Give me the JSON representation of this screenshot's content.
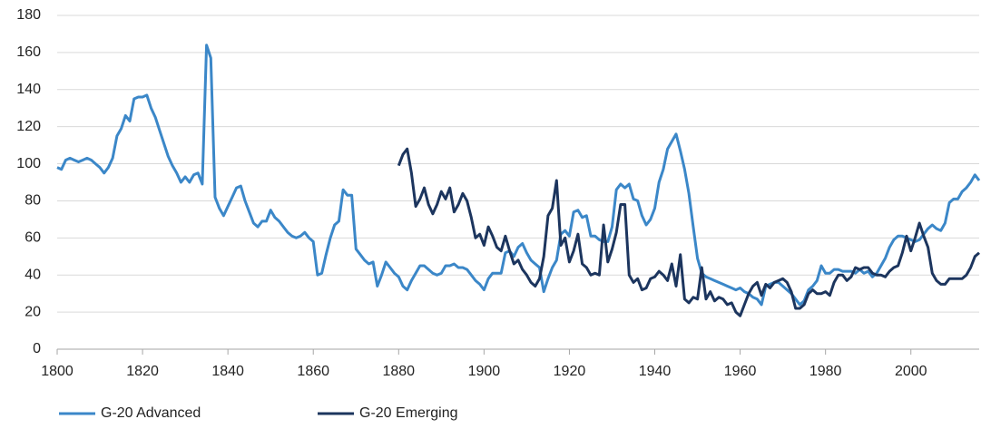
{
  "chart_data": {
    "type": "line",
    "x": [
      1800,
      1801,
      1802,
      1803,
      1804,
      1805,
      1806,
      1807,
      1808,
      1809,
      1810,
      1811,
      1812,
      1813,
      1814,
      1815,
      1816,
      1817,
      1818,
      1819,
      1820,
      1821,
      1822,
      1823,
      1824,
      1825,
      1826,
      1827,
      1828,
      1829,
      1830,
      1831,
      1832,
      1833,
      1834,
      1835,
      1836,
      1837,
      1838,
      1839,
      1840,
      1841,
      1842,
      1843,
      1844,
      1845,
      1846,
      1847,
      1848,
      1849,
      1850,
      1851,
      1852,
      1853,
      1854,
      1855,
      1856,
      1857,
      1858,
      1859,
      1860,
      1861,
      1862,
      1863,
      1864,
      1865,
      1866,
      1867,
      1868,
      1869,
      1870,
      1871,
      1872,
      1873,
      1874,
      1875,
      1876,
      1877,
      1878,
      1879,
      1880,
      1881,
      1882,
      1883,
      1884,
      1885,
      1886,
      1887,
      1888,
      1889,
      1890,
      1891,
      1892,
      1893,
      1894,
      1895,
      1896,
      1897,
      1898,
      1899,
      1900,
      1901,
      1902,
      1903,
      1904,
      1905,
      1906,
      1907,
      1908,
      1909,
      1910,
      1911,
      1912,
      1913,
      1914,
      1915,
      1916,
      1917,
      1918,
      1919,
      1920,
      1921,
      1922,
      1923,
      1924,
      1925,
      1926,
      1927,
      1928,
      1929,
      1930,
      1931,
      1932,
      1933,
      1934,
      1935,
      1936,
      1937,
      1938,
      1939,
      1940,
      1941,
      1942,
      1943,
      1944,
      1945,
      1946,
      1947,
      1948,
      1949,
      1950,
      1951,
      1952,
      1953,
      1954,
      1955,
      1956,
      1957,
      1958,
      1959,
      1960,
      1961,
      1962,
      1963,
      1964,
      1965,
      1966,
      1967,
      1968,
      1969,
      1970,
      1971,
      1972,
      1973,
      1974,
      1975,
      1976,
      1977,
      1978,
      1979,
      1980,
      1981,
      1982,
      1983,
      1984,
      1985,
      1986,
      1987,
      1988,
      1989,
      1990,
      1991,
      1992,
      1993,
      1994,
      1995,
      1996,
      1997,
      1998,
      1999,
      2000,
      2001,
      2002,
      2003,
      2004,
      2005,
      2006,
      2007,
      2008,
      2009,
      2010,
      2011,
      2012,
      2013,
      2014,
      2015,
      2016
    ],
    "series": [
      {
        "name": "G-20 Advanced",
        "color": "#3b87c8",
        "values": [
          98,
          97,
          102,
          103,
          102,
          101,
          102,
          103,
          102,
          100,
          98,
          95,
          98,
          103,
          115,
          119,
          126,
          123,
          135,
          136,
          136,
          137,
          130,
          125,
          118,
          111,
          104,
          99,
          95,
          90,
          93,
          90,
          94,
          95,
          89,
          164,
          157,
          82,
          76,
          72,
          77,
          82,
          87,
          88,
          80,
          74,
          68,
          66,
          69,
          69,
          75,
          71,
          69,
          66,
          63,
          61,
          60,
          61,
          63,
          60,
          58,
          40,
          41,
          51,
          60,
          67,
          69,
          86,
          83,
          83,
          54,
          51,
          48,
          46,
          47,
          34,
          40,
          47,
          44,
          41,
          39,
          34,
          32,
          37,
          41,
          45,
          45,
          43,
          41,
          40,
          41,
          45,
          45,
          46,
          44,
          44,
          43,
          40,
          37,
          35,
          32,
          38,
          41,
          41,
          41,
          52,
          53,
          50,
          55,
          57,
          52,
          48,
          46,
          44,
          31,
          38,
          44,
          48,
          62,
          64,
          61,
          74,
          75,
          71,
          72,
          61,
          61,
          59,
          58,
          58,
          66,
          86,
          89,
          87,
          89,
          81,
          80,
          72,
          67,
          70,
          76,
          90,
          97,
          108,
          112,
          116,
          107,
          97,
          84,
          66,
          49,
          41,
          39,
          38,
          37,
          36,
          35,
          34,
          33,
          32,
          33,
          31,
          30,
          28,
          27,
          24,
          34,
          35,
          36,
          36,
          34,
          32,
          30,
          27,
          24,
          26,
          32,
          34,
          37,
          45,
          41,
          41,
          43,
          43,
          42,
          42,
          42,
          41,
          43,
          41,
          42,
          39,
          41,
          45,
          49,
          55,
          59,
          61,
          61,
          60,
          59,
          58,
          59,
          62,
          65,
          67,
          65,
          64,
          68,
          79,
          81,
          81,
          85,
          87,
          90,
          94,
          91
        ]
      },
      {
        "name": "G-20 Emerging",
        "color": "#1c355e",
        "values": [
          null,
          null,
          null,
          null,
          null,
          null,
          null,
          null,
          null,
          null,
          null,
          null,
          null,
          null,
          null,
          null,
          null,
          null,
          null,
          null,
          null,
          null,
          null,
          null,
          null,
          null,
          null,
          null,
          null,
          null,
          null,
          null,
          null,
          null,
          null,
          null,
          null,
          null,
          null,
          null,
          null,
          null,
          null,
          null,
          null,
          null,
          null,
          null,
          null,
          null,
          null,
          null,
          null,
          null,
          null,
          null,
          null,
          null,
          null,
          null,
          null,
          null,
          null,
          null,
          null,
          null,
          null,
          null,
          null,
          null,
          null,
          null,
          null,
          null,
          null,
          null,
          null,
          null,
          null,
          null,
          99,
          105,
          108,
          95,
          77,
          81,
          87,
          78,
          73,
          78,
          85,
          81,
          87,
          74,
          78,
          84,
          80,
          71,
          60,
          62,
          56,
          66,
          61,
          55,
          53,
          61,
          53,
          46,
          48,
          43,
          40,
          36,
          34,
          38,
          50,
          72,
          76,
          91,
          56,
          60,
          47,
          53,
          62,
          46,
          44,
          40,
          41,
          40,
          67,
          47,
          54,
          63,
          78,
          78,
          40,
          36,
          38,
          32,
          33,
          38,
          39,
          42,
          40,
          37,
          46,
          34,
          51,
          27,
          25,
          28,
          27,
          44,
          27,
          31,
          26,
          28,
          27,
          24,
          25,
          20,
          18,
          24,
          30,
          34,
          36,
          29,
          35,
          33,
          36,
          37,
          38,
          36,
          31,
          22,
          22,
          24,
          30,
          32,
          30,
          30,
          31,
          29,
          36,
          40,
          40,
          37,
          39,
          44,
          43,
          44,
          44,
          41,
          40,
          40,
          39,
          42,
          44,
          45,
          52,
          61,
          53,
          60,
          68,
          61,
          55,
          41,
          37,
          35,
          35,
          38,
          38,
          38,
          38,
          40,
          44,
          50,
          52
        ]
      }
    ],
    "xlim": [
      1800,
      2016
    ],
    "xticks": [
      1800,
      1820,
      1840,
      1860,
      1880,
      1900,
      1920,
      1940,
      1960,
      1980,
      2000
    ],
    "ylim": [
      0,
      180
    ],
    "yticks": [
      0,
      20,
      40,
      60,
      80,
      100,
      120,
      140,
      160,
      180
    ],
    "grid": true,
    "legend": "bottom"
  }
}
